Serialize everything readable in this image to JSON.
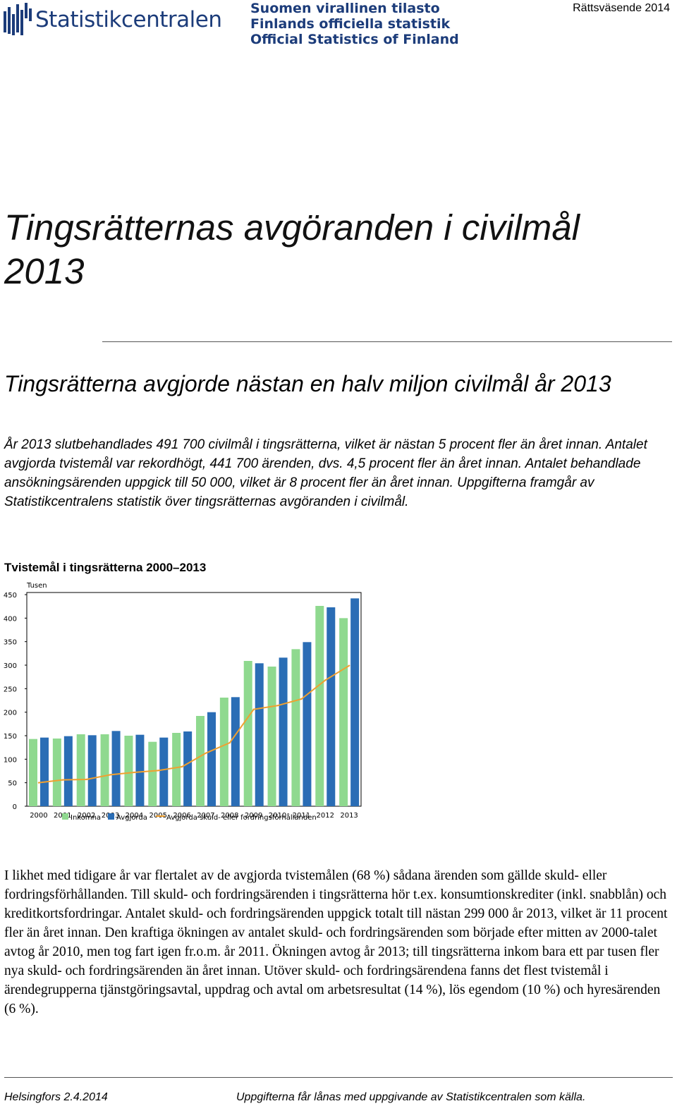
{
  "header": {
    "logo_text": "Statistikcentralen",
    "org_names": [
      "Suomen virallinen tilasto",
      "Finlands officiella statistik",
      "Official Statistics of Finland"
    ],
    "series": "Rättsväsende 2014"
  },
  "document": {
    "title": "Tingsrätternas avgöranden i civilmål 2013",
    "lead_heading": "Tingsrätterna avgjorde nästan en halv miljon civilmål år 2013",
    "lead_text": "År 2013 slutbehandlades 491 700 civilmål i tingsrätterna, vilket är nästan 5 procent fler än året innan. Antalet avgjorda tvistemål var rekordhögt, 441 700 ärenden, dvs. 4,5 procent fler än året innan. Antalet behandlade ansökningsärenden uppgick till 50 000, vilket är 8 procent fler än året innan. Uppgifterna framgår av Statistikcentralens statistik över tingsrätternas avgöranden i civilmål.",
    "body_text": "I likhet med tidigare år var flertalet av de avgjorda tvistemålen (68 %) sådana ärenden som gällde skuld- eller fordringsförhållanden. Till skuld- och fordringsärenden i tingsrätterna hör t.ex. konsumtionskrediter (inkl. snabblån) och kreditkortsfordringar. Antalet skuld- och fordringsärenden uppgick totalt till nästan 299 000 år 2013, vilket är 11 procent fler än året innan. Den kraftiga ökningen av antalet skuld- och fordringsärenden som började efter mitten av 2000-talet avtog år 2010, men tog fart igen fr.o.m. år 2011. Ökningen avtog år 2013; till tingsrätterna inkom bara ett par tusen fler nya skuld- och fordringsärenden än året innan. Utöver skuld- och fordringsärendena fanns det flest tvistemål i ärendegrupperna tjänstgöringsavtal, uppdrag och avtal om arbetsresultat (14 %), lös egendom (10 %) och hyresärenden (6 %)."
  },
  "chart_data": {
    "type": "bar",
    "title": "Tvistemål i tingsrätterna 2000–2013",
    "ylabel": "Tusen",
    "ylim": [
      0,
      450
    ],
    "yticks": [
      0,
      50,
      100,
      150,
      200,
      250,
      300,
      350,
      400,
      450
    ],
    "categories": [
      "2000",
      "2001",
      "2002",
      "2003",
      "2004",
      "2005",
      "2006",
      "2007",
      "2008",
      "2009",
      "2010",
      "2011",
      "2012",
      "2013"
    ],
    "series": [
      {
        "name": "Inkomna",
        "kind": "bar",
        "color": "#8fd98f",
        "values": [
          143,
          144,
          153,
          153,
          150,
          137,
          156,
          192,
          231,
          309,
          297,
          334,
          426,
          400
        ]
      },
      {
        "name": "Avgjorda",
        "kind": "bar",
        "color": "#2a6db5",
        "values": [
          146,
          149,
          151,
          160,
          152,
          146,
          159,
          200,
          232,
          304,
          316,
          349,
          423,
          442
        ]
      },
      {
        "name": "Avgjorda skuld- eller fordringsförhållanden",
        "kind": "line",
        "color": "#f0a030",
        "values": [
          50,
          56,
          57,
          67,
          72,
          76,
          84,
          113,
          135,
          206,
          214,
          228,
          268,
          299
        ]
      }
    ],
    "legend": "bottom",
    "grid": false
  },
  "footer": {
    "left": "Helsingfors 2.4.2014",
    "right": "Uppgifterna får lånas med uppgivande av Statistikcentralen som källa."
  }
}
